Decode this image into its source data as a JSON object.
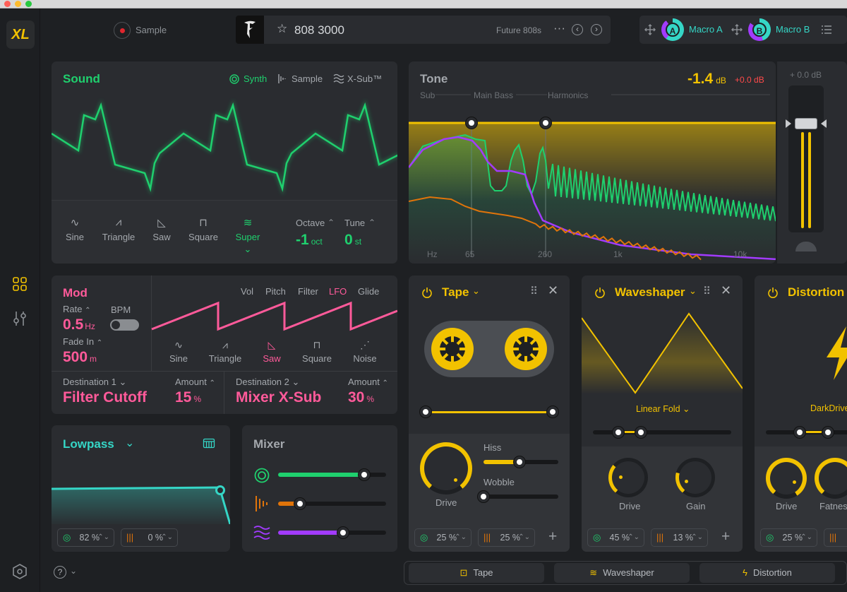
{
  "topbar": {
    "logo": "XL",
    "record_label": "Sample",
    "preset_name": "808 3000",
    "preset_pack": "Future 808s",
    "more": "···",
    "prev": "‹",
    "next": "›",
    "macro_a": "Macro A",
    "macro_b": "Macro B",
    "macro_a_letter": "A",
    "macro_b_letter": "B"
  },
  "sound": {
    "title": "Sound",
    "tabs": [
      "Synth",
      "Sample",
      "X-Sub™"
    ],
    "waves": [
      "Sine",
      "Triangle",
      "Saw",
      "Square",
      "Super"
    ],
    "octave_label": "Octave",
    "octave_value": "-1",
    "octave_unit": "oct",
    "tune_label": "Tune",
    "tune_value": "0",
    "tune_unit": "st"
  },
  "tone": {
    "title": "Tone",
    "gain_value": "-1.4",
    "gain_unit": "dB",
    "gain_delta": "+0.0 dB",
    "bands": [
      "Sub",
      "Main Bass",
      "Harmonics"
    ],
    "freqs": [
      "Hz",
      "65",
      "260",
      "1k",
      "10k"
    ],
    "fader_value": "+ 0.0 dB"
  },
  "mod": {
    "title": "Mod",
    "rate_label": "Rate",
    "rate_value": "0.5",
    "rate_unit": "Hz",
    "bpm_label": "BPM",
    "fade_label": "Fade In",
    "fade_value": "500",
    "fade_unit": "m",
    "tabs": [
      "Vol",
      "Pitch",
      "Filter",
      "LFO",
      "Glide"
    ],
    "waves": [
      "Sine",
      "Triangle",
      "Saw",
      "Square",
      "Noise"
    ],
    "dest1_label": "Destination 1",
    "dest1_value": "Filter Cutoff",
    "amount1_label": "Amount",
    "amount1_value": "15",
    "amount1_unit": "%",
    "dest2_label": "Destination 2",
    "dest2_value": "Mixer X-Sub",
    "amount2_label": "Amount",
    "amount2_value": "30",
    "amount2_unit": "%"
  },
  "filter": {
    "title": "Lowpass",
    "chip1": "82 %",
    "chip2": "0 %"
  },
  "mixer": {
    "title": "Mixer",
    "levels": [
      0.8,
      0.2,
      0.6
    ]
  },
  "tape": {
    "title": "Tape",
    "drive_label": "Drive",
    "hiss_label": "Hiss",
    "wobble_label": "Wobble",
    "chip1": "25 %",
    "chip2": "25 %",
    "hiss_level": 0.48,
    "wobble_level": 0
  },
  "waveshaper": {
    "title": "Waveshaper",
    "mode": "Linear Fold",
    "drive_label": "Drive",
    "gain_label": "Gain",
    "chip1": "45 %",
    "chip2": "13 %"
  },
  "distortion": {
    "title": "Distortion",
    "mode": "DarkDrive",
    "drive_label": "Drive",
    "fatness_label": "Fatness",
    "chip1": "25 %"
  },
  "bottom_tabs": [
    "Tape",
    "Waveshaper",
    "Distortion"
  ],
  "help": "?",
  "colors": {
    "green": "#1fd06e",
    "yellow": "#f2c200",
    "pink": "#ff5a9a",
    "teal": "#35d6c6",
    "purple": "#a23bff",
    "orange": "#e0740a"
  }
}
